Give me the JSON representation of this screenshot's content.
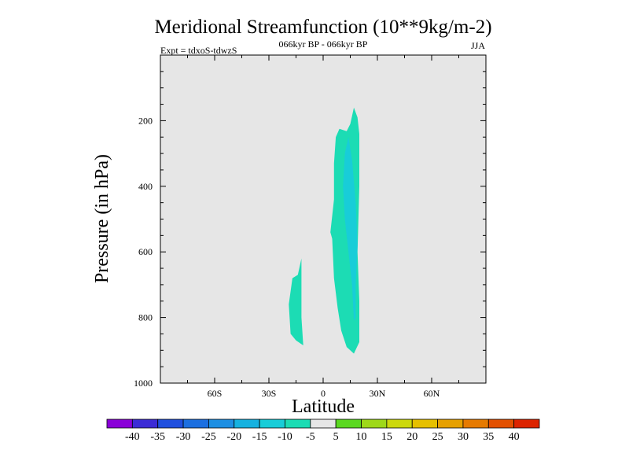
{
  "chart_data": {
    "type": "contour",
    "title": "Meridional Streamfunction (10**9kg/m-2)",
    "subtitle": "066kyr BP - 066kyr BP",
    "experiment_label": "Expt = tdxoS-tdwzS",
    "season_label": "JJA",
    "xlabel": "Latitude",
    "ylabel": "Pressure (in hPa)",
    "xlim": [
      -90,
      90
    ],
    "ylim": [
      1000,
      0
    ],
    "x_ticks": [
      {
        "value": -60,
        "label": "60S"
      },
      {
        "value": -30,
        "label": "30S"
      },
      {
        "value": 0,
        "label": "0"
      },
      {
        "value": 30,
        "label": "30N"
      },
      {
        "value": 60,
        "label": "60N"
      }
    ],
    "y_ticks": [
      {
        "value": 200,
        "label": "200"
      },
      {
        "value": 400,
        "label": "400"
      },
      {
        "value": 600,
        "label": "600"
      },
      {
        "value": 800,
        "label": "800"
      },
      {
        "value": 1000,
        "label": "1000"
      }
    ],
    "background_color": "#e6e6e6",
    "levels": [
      -40,
      -35,
      -30,
      -25,
      -20,
      -15,
      -10,
      -5,
      5,
      10,
      15,
      20,
      25,
      30,
      35,
      40
    ],
    "colorbar_colors": [
      "#8a00d8",
      "#3c2cd6",
      "#1f4fde",
      "#1c6fe0",
      "#1e8fe2",
      "#16b2e0",
      "#18cdd8",
      "#1cdcb4",
      "#e6e6e6",
      "#5ad820",
      "#9ed818",
      "#ccd80c",
      "#e6c000",
      "#e6a000",
      "#e67a00",
      "#e25000",
      "#dc2400"
    ],
    "regions": [
      {
        "name": "southern-cell",
        "value_band": "-10 to -5",
        "color": "#1cdcb4",
        "polygon": [
          [
            -12,
            620
          ],
          [
            -14,
            670
          ],
          [
            -17,
            680
          ],
          [
            -19,
            760
          ],
          [
            -18,
            850
          ],
          [
            -15,
            870
          ],
          [
            -11,
            885
          ],
          [
            -12,
            800
          ],
          [
            -12,
            700
          ]
        ]
      },
      {
        "name": "tropical-cell-outer",
        "value_band": "-10 to -5",
        "color": "#1cdcb4",
        "polygon": [
          [
            17,
            160
          ],
          [
            19,
            190
          ],
          [
            20,
            240
          ],
          [
            20,
            400
          ],
          [
            19,
            600
          ],
          [
            20,
            750
          ],
          [
            20,
            875
          ],
          [
            17,
            910
          ],
          [
            13,
            890
          ],
          [
            10,
            840
          ],
          [
            8,
            770
          ],
          [
            6,
            680
          ],
          [
            5,
            560
          ],
          [
            4,
            540
          ],
          [
            6,
            440
          ],
          [
            6,
            330
          ],
          [
            7,
            250
          ],
          [
            9,
            225
          ],
          [
            13,
            232
          ],
          [
            15,
            210
          ]
        ]
      },
      {
        "name": "tropical-cell-inner",
        "value_band": "-15 to -10",
        "color": "#18cdd8",
        "polygon": [
          [
            14,
            250
          ],
          [
            16,
            320
          ],
          [
            18,
            450
          ],
          [
            19,
            580
          ],
          [
            18,
            700
          ],
          [
            18,
            800
          ],
          [
            17,
            810
          ],
          [
            16,
            700
          ],
          [
            14,
            600
          ],
          [
            12,
            500
          ],
          [
            11,
            400
          ],
          [
            12,
            300
          ]
        ]
      }
    ]
  }
}
